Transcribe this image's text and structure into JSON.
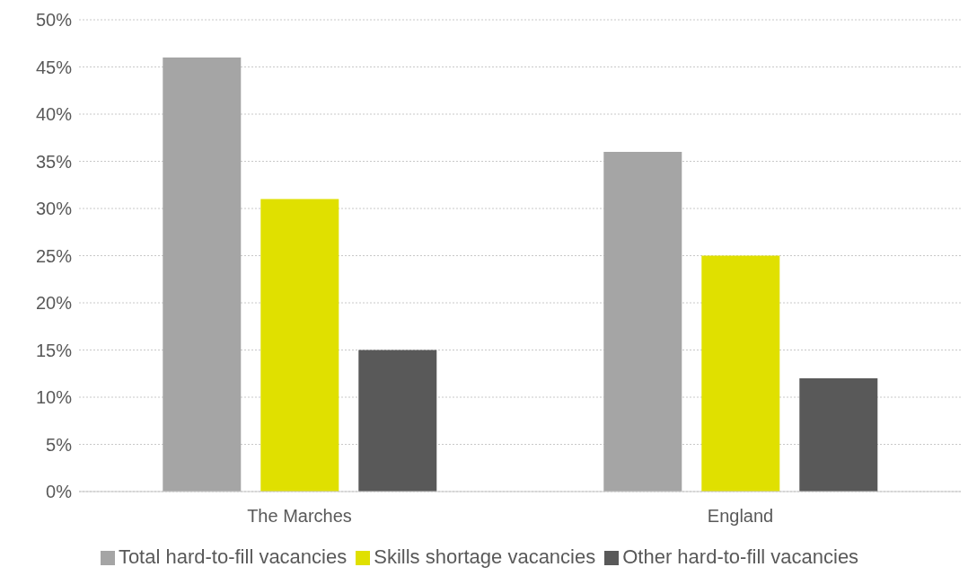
{
  "chart_data": {
    "type": "bar",
    "categories": [
      "The Marches",
      "England"
    ],
    "series": [
      {
        "name": "Total hard-to-fill vacancies",
        "color": "#a5a5a5",
        "values": [
          46,
          36
        ]
      },
      {
        "name": "Skills shortage vacancies",
        "color": "#e0e000",
        "values": [
          31,
          25
        ]
      },
      {
        "name": "Other hard-to-fill vacancies",
        "color": "#595959",
        "values": [
          15,
          12
        ]
      }
    ],
    "ylim": [
      0,
      50
    ],
    "yticks": [
      {
        "value": 0,
        "label": "0%"
      },
      {
        "value": 5,
        "label": "5%"
      },
      {
        "value": 10,
        "label": "10%"
      },
      {
        "value": 15,
        "label": "15%"
      },
      {
        "value": 20,
        "label": "20%"
      },
      {
        "value": 25,
        "label": "25%"
      },
      {
        "value": 30,
        "label": "30%"
      },
      {
        "value": 35,
        "label": "35%"
      },
      {
        "value": 40,
        "label": "40%"
      },
      {
        "value": 45,
        "label": "45%"
      },
      {
        "value": 50,
        "label": "50%"
      }
    ],
    "grid": "y",
    "legend": "bottom"
  }
}
